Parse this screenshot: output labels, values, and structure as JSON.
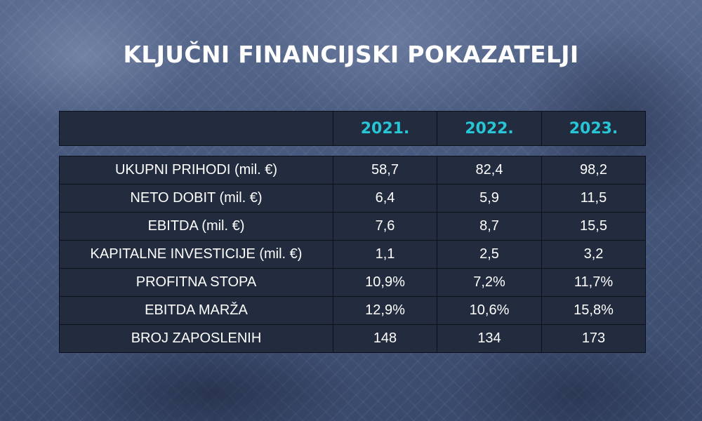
{
  "title": "KLJUČNI FINANCIJSKI POKAZATELJI",
  "columns": [
    "2021.",
    "2022.",
    "2023."
  ],
  "rows": [
    {
      "label": "UKUPNI PRIHODI (mil. €)",
      "values": [
        "58,7",
        "82,4",
        "98,2"
      ]
    },
    {
      "label": "NETO DOBIT (mil. €)",
      "values": [
        "6,4",
        "5,9",
        "11,5"
      ]
    },
    {
      "label": "EBITDA (mil. €)",
      "values": [
        "7,6",
        "8,7",
        "15,5"
      ]
    },
    {
      "label": "KAPITALNE INVESTICIJE (mil. €)",
      "values": [
        "1,1",
        "2,5",
        "3,2"
      ]
    },
    {
      "label": "PROFITNA STOPA",
      "values": [
        "10,9%",
        "7,2%",
        "11,7%"
      ]
    },
    {
      "label": "EBITDA MARŽA",
      "values": [
        "12,9%",
        "10,6%",
        "15,8%"
      ]
    },
    {
      "label": "BROJ ZAPOSLENIH",
      "values": [
        "148",
        "134",
        "173"
      ]
    }
  ],
  "colors": {
    "header_text": "#27c6d6",
    "cell_bg": "#232b3e",
    "text": "#ffffff"
  }
}
